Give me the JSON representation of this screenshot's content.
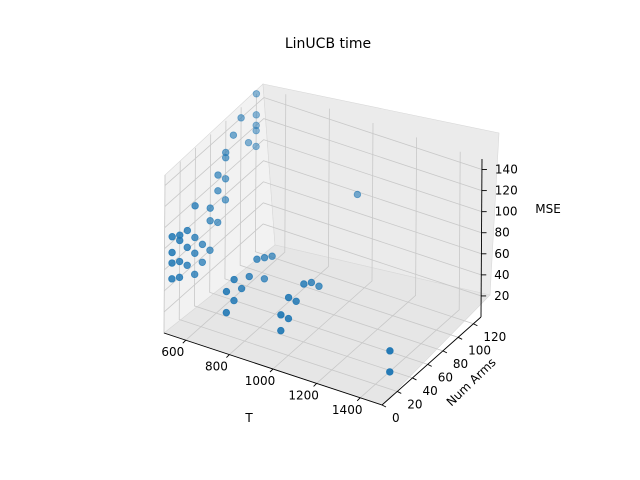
{
  "chart_data": {
    "type": "scatter3d",
    "title": "LinUCB time",
    "xlabel": "T",
    "ylabel": "Num Arms",
    "zlabel": "MSE",
    "xlim": [
      500,
      1500
    ],
    "ylim": [
      0,
      130
    ],
    "zlim": [
      0,
      150
    ],
    "x_ticks": [
      "600",
      "800",
      "1000",
      "1200",
      "1400"
    ],
    "y_ticks": [
      "0",
      "20",
      "40",
      "60",
      "80",
      "100",
      "120"
    ],
    "z_ticks": [
      "20",
      "40",
      "60",
      "80",
      "100",
      "120",
      "140"
    ],
    "marker_color": "#1f77b4",
    "series": [
      {
        "points": [
          [
            500,
            10,
            45
          ],
          [
            500,
            10,
            60
          ],
          [
            500,
            10,
            70
          ],
          [
            500,
            10,
            85
          ],
          [
            500,
            20,
            40
          ],
          [
            500,
            20,
            55
          ],
          [
            500,
            20,
            75
          ],
          [
            500,
            20,
            80
          ],
          [
            500,
            30,
            45
          ],
          [
            500,
            30,
            62
          ],
          [
            500,
            30,
            78
          ],
          [
            500,
            40,
            30
          ],
          [
            500,
            40,
            50
          ],
          [
            500,
            40,
            65
          ],
          [
            500,
            40,
            95
          ],
          [
            500,
            50,
            35
          ],
          [
            500,
            50,
            52
          ],
          [
            500,
            60,
            40
          ],
          [
            500,
            60,
            68
          ],
          [
            500,
            60,
            80
          ],
          [
            500,
            70,
            60
          ],
          [
            500,
            70,
            90
          ],
          [
            500,
            70,
            105
          ],
          [
            500,
            80,
            75
          ],
          [
            500,
            80,
            95
          ],
          [
            500,
            80,
            115
          ],
          [
            500,
            80,
            120
          ],
          [
            500,
            90,
            130
          ],
          [
            500,
            100,
            140
          ],
          [
            500,
            110,
            110
          ],
          [
            500,
            120,
            150
          ],
          [
            500,
            120,
            130
          ],
          [
            500,
            120,
            120
          ],
          [
            500,
            120,
            115
          ],
          [
            500,
            120,
            100
          ],
          [
            750,
            10,
            30
          ],
          [
            750,
            10,
            50
          ],
          [
            750,
            20,
            35
          ],
          [
            750,
            20,
            55
          ],
          [
            750,
            30,
            40
          ],
          [
            750,
            40,
            45
          ],
          [
            750,
            50,
            55
          ],
          [
            750,
            60,
            30
          ],
          [
            750,
            60,
            50
          ],
          [
            750,
            70,
            45
          ],
          [
            1000,
            10,
            30
          ],
          [
            1000,
            10,
            45
          ],
          [
            1000,
            20,
            35
          ],
          [
            1000,
            20,
            55
          ],
          [
            1000,
            30,
            45
          ],
          [
            1000,
            40,
            55
          ],
          [
            1000,
            50,
            50
          ],
          [
            1000,
            60,
            40
          ],
          [
            1000,
            110,
            95
          ],
          [
            1500,
            10,
            25
          ],
          [
            1500,
            10,
            45
          ]
        ]
      }
    ]
  }
}
